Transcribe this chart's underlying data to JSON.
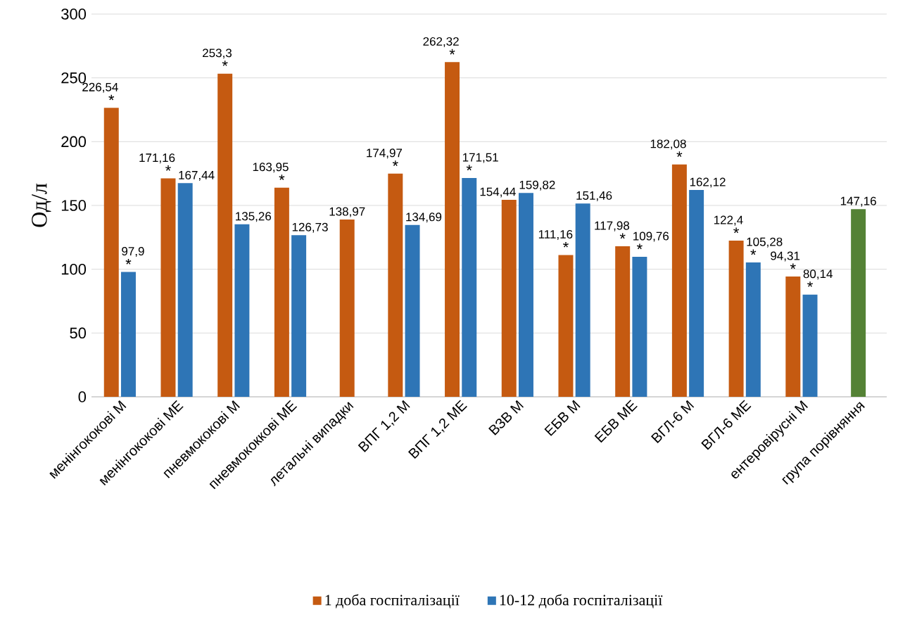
{
  "chart_data": {
    "type": "bar",
    "ylabel": "Од/л",
    "categories": [
      "менінгококові М",
      "менінгококові МЕ",
      "пневмококові М",
      "пневмококкові МЕ",
      "летальні випадки",
      "ВПГ 1,2 М",
      "ВПГ 1,2 МЕ",
      "ВЗВ М",
      "ЕБВ М",
      "ЕБВ МЕ",
      "ВГЛ-6 М",
      "ВГЛ-6 МЕ",
      "ентеровірусні М",
      "група порівняння"
    ],
    "series": [
      {
        "name": "1 доба госпіталізації",
        "color": "#c55a11",
        "values": [
          226.54,
          171.16,
          253.3,
          163.95,
          138.97,
          174.97,
          262.32,
          154.44,
          111.16,
          117.98,
          182.08,
          122.4,
          94.31,
          null
        ],
        "value_labels": [
          "226,54",
          "171,16",
          "253,3",
          "163,95",
          "138,97",
          "174,97",
          "262,32",
          "154,44",
          "111,16",
          "117,98",
          "182,08",
          "122,4",
          "94,31",
          null
        ]
      },
      {
        "name": "10-12 доба госпіталізації",
        "color": "#2e75b6",
        "values": [
          97.9,
          167.44,
          135.26,
          126.73,
          null,
          134.69,
          171.51,
          159.82,
          151.46,
          109.76,
          162.12,
          105.28,
          80.14,
          null
        ],
        "value_labels": [
          "97,9",
          "167,44",
          "135,26",
          "126,73",
          null,
          "134,69",
          "171,51",
          "159,82",
          "151,46",
          "109,76",
          "162,12",
          "105,28",
          "80,14",
          null
        ]
      },
      {
        "color": "#548235",
        "values": [
          null,
          null,
          null,
          null,
          null,
          null,
          null,
          null,
          null,
          null,
          null,
          null,
          null,
          147.16
        ],
        "value_labels": [
          null,
          null,
          null,
          null,
          null,
          null,
          null,
          null,
          null,
          null,
          null,
          null,
          null,
          "147,16"
        ]
      }
    ],
    "ylim": [
      0,
      300
    ],
    "yticks": [
      0,
      50,
      100,
      150,
      200,
      250,
      300
    ],
    "grid": "y",
    "legend": "bottom",
    "annotations": [
      {
        "text": "*",
        "x": "менінгококові М",
        "y": 226.54
      },
      {
        "text": "*",
        "x": "менінгококові М",
        "y": 97.9
      },
      {
        "text": "*",
        "x": "менінгококові МЕ",
        "y": 171.16
      },
      {
        "text": "*",
        "x": "пневмококові М",
        "y": 253.3
      },
      {
        "text": "*",
        "x": "пневмококкові МЕ",
        "y": 163.95
      },
      {
        "text": "*",
        "x": "ВПГ 1,2 М",
        "y": 174.97
      },
      {
        "text": "*",
        "x": "ВПГ 1,2 МЕ",
        "y": 262.32
      },
      {
        "text": "*",
        "x": "ВПГ 1,2 МЕ",
        "y": 171.51
      },
      {
        "text": "*",
        "x": "ЕБВ М",
        "y": 111.16
      },
      {
        "text": "*",
        "x": "ЕБВ МЕ",
        "y": 117.98
      },
      {
        "text": "*",
        "x": "ЕБВ МЕ",
        "y": 109.76
      },
      {
        "text": "*",
        "x": "ВГЛ-6 М",
        "y": 182.08
      },
      {
        "text": "*",
        "x": "ВГЛ-6 МЕ",
        "y": 122.4
      },
      {
        "text": "*",
        "x": "ВГЛ-6 МЕ",
        "y": 105.28
      },
      {
        "text": "*",
        "x": "ентеровірусні М",
        "y": 94.31
      },
      {
        "text": "*",
        "x": "ентеровірусні М",
        "y": 80.14
      }
    ]
  }
}
